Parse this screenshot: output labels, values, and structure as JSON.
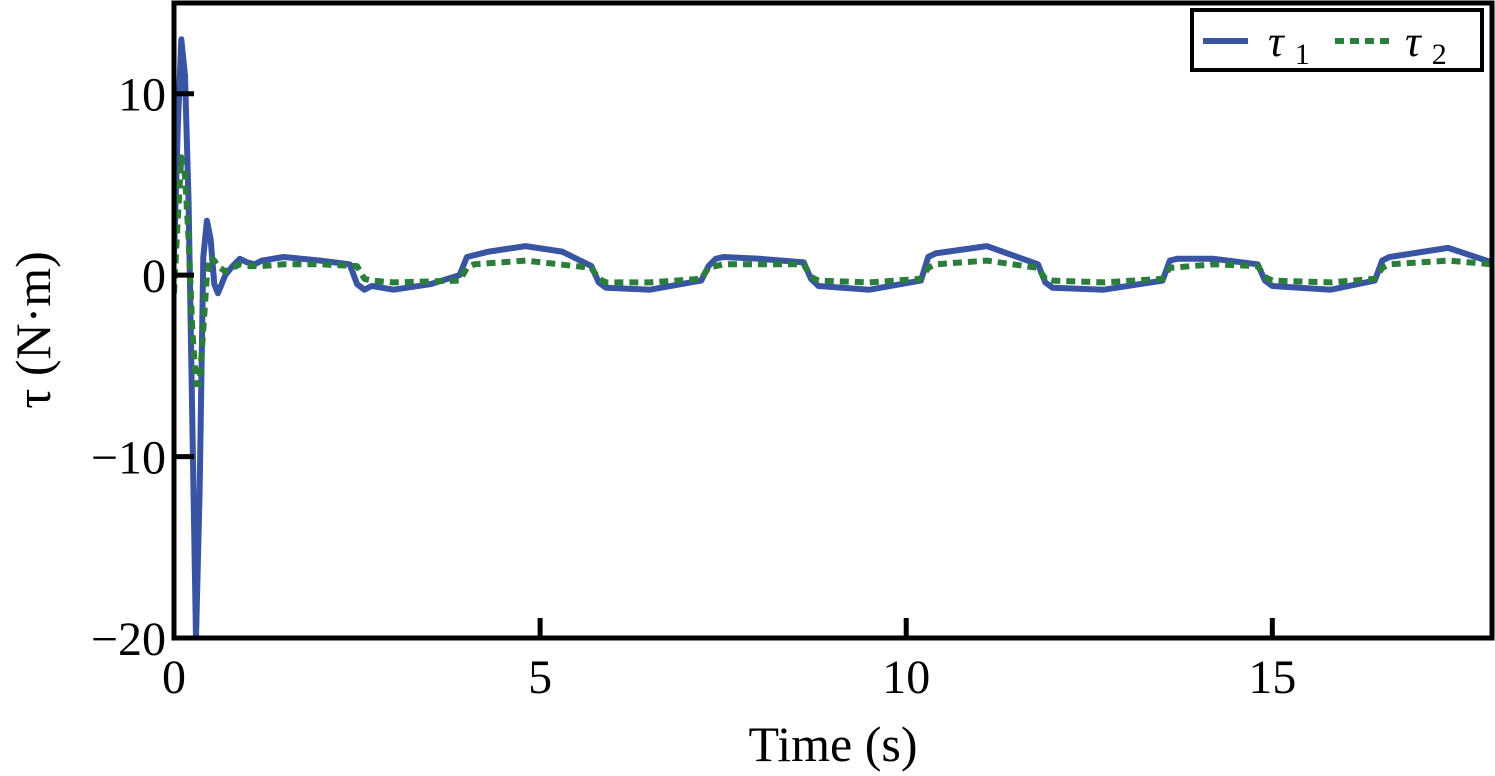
{
  "chart_data": {
    "type": "line",
    "xlabel": "Time (s)",
    "ylabel": "τ (N·m)",
    "xlim": [
      0,
      18
    ],
    "ylim": [
      -20,
      15
    ],
    "xticks": [
      0,
      5,
      10,
      15
    ],
    "xtick_labels": [
      "0",
      "5",
      "10",
      "15"
    ],
    "yticks": [
      -20,
      -10,
      0,
      10
    ],
    "ytick_labels": [
      "−20",
      "−10",
      "0",
      "10"
    ],
    "grid": false,
    "legend_position": "top-right",
    "series": [
      {
        "name_symbol": "τ",
        "name_subscript": "1",
        "color": "#3a54a4",
        "style": "solid",
        "x": [
          0,
          0.05,
          0.1,
          0.15,
          0.2,
          0.25,
          0.3,
          0.35,
          0.4,
          0.45,
          0.5,
          0.55,
          0.6,
          0.65,
          0.7,
          0.8,
          0.9,
          1.0,
          1.1,
          1.2,
          1.5,
          2.0,
          2.4,
          2.5,
          2.6,
          2.7,
          3.0,
          3.5,
          3.9,
          4.0,
          4.1,
          4.3,
          4.8,
          5.3,
          5.7,
          5.8,
          5.9,
          6.5,
          7.2,
          7.3,
          7.4,
          7.5,
          8.0,
          8.6,
          8.7,
          8.8,
          9.5,
          10.2,
          10.3,
          10.4,
          11.1,
          11.8,
          11.9,
          12.0,
          12.7,
          13.5,
          13.6,
          13.7,
          14.2,
          14.8,
          14.9,
          15.0,
          15.8,
          16.4,
          16.5,
          16.6,
          17.4,
          18.0
        ],
        "y": [
          1,
          8,
          13,
          11,
          4,
          -8,
          -20,
          -12,
          1,
          3,
          2,
          -0.5,
          -1,
          -0.5,
          0,
          0.5,
          0.9,
          0.7,
          0.6,
          0.8,
          1,
          0.8,
          0.6,
          -0.5,
          -0.8,
          -0.6,
          -0.8,
          -0.5,
          0,
          1,
          1.1,
          1.3,
          1.6,
          1.3,
          0.5,
          -0.4,
          -0.7,
          -0.8,
          -0.3,
          0.5,
          0.9,
          1.0,
          0.9,
          0.7,
          -0.2,
          -0.6,
          -0.8,
          -0.3,
          1.0,
          1.2,
          1.6,
          0.6,
          -0.4,
          -0.7,
          -0.8,
          -0.3,
          0.8,
          0.9,
          0.9,
          0.6,
          -0.3,
          -0.6,
          -0.8,
          -0.3,
          0.8,
          1.0,
          1.5,
          0.7
        ]
      },
      {
        "name_symbol": "τ",
        "name_subscript": "2",
        "color": "#2a7d3a",
        "style": "dotted",
        "x": [
          0,
          0.05,
          0.1,
          0.15,
          0.2,
          0.25,
          0.3,
          0.35,
          0.4,
          0.45,
          0.5,
          0.55,
          0.6,
          0.7,
          0.8,
          0.9,
          1.0,
          1.2,
          1.5,
          2.0,
          2.5,
          2.6,
          2.7,
          3.0,
          3.9,
          4.0,
          4.1,
          4.8,
          5.7,
          5.8,
          5.9,
          6.5,
          7.2,
          7.3,
          7.5,
          8.6,
          8.7,
          8.8,
          9.5,
          10.2,
          10.3,
          10.4,
          11.1,
          11.8,
          11.9,
          12.0,
          12.7,
          13.5,
          13.6,
          14.2,
          14.8,
          14.9,
          15.0,
          15.8,
          16.4,
          16.5,
          16.6,
          17.4,
          18.0
        ],
        "y": [
          -1,
          3,
          6.5,
          5.5,
          2,
          -3,
          -6,
          -6,
          -3,
          0,
          1,
          0.8,
          0.5,
          0.2,
          0.4,
          0.6,
          0.5,
          0.5,
          0.6,
          0.6,
          0.5,
          -0.2,
          -0.3,
          -0.4,
          -0.3,
          0.4,
          0.6,
          0.8,
          0.4,
          -0.2,
          -0.4,
          -0.4,
          -0.2,
          0.4,
          0.6,
          0.6,
          -0.1,
          -0.3,
          -0.4,
          -0.2,
          0.4,
          0.6,
          0.8,
          0.4,
          -0.2,
          -0.3,
          -0.4,
          -0.2,
          0.4,
          0.6,
          0.5,
          -0.1,
          -0.3,
          -0.4,
          -0.2,
          0.4,
          0.6,
          0.8,
          0.6
        ]
      }
    ]
  }
}
